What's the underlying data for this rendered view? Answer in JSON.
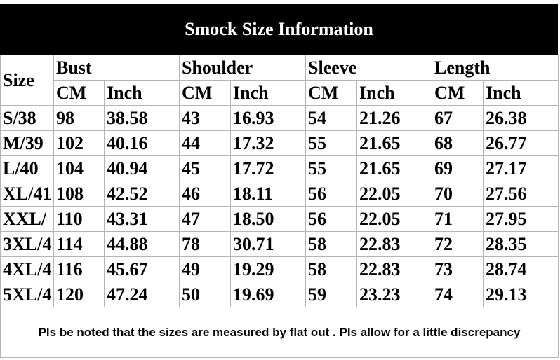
{
  "header": {
    "title": "Smock Size Information"
  },
  "table": {
    "size_label": "Size",
    "groups": [
      "Bust",
      "Shoulder",
      "Sleeve",
      "Length"
    ],
    "units": [
      "CM",
      "Inch",
      "CM",
      "Inch",
      "CM",
      "Inch",
      "CM",
      "Inch"
    ],
    "rows": [
      [
        "S/38",
        "98",
        "38.58",
        "43",
        "16.93",
        "54",
        "21.26",
        "67",
        "26.38"
      ],
      [
        "M/39",
        "102",
        "40.16",
        "44",
        "17.32",
        "55",
        "21.65",
        "68",
        "26.77"
      ],
      [
        "L/40",
        "104",
        "40.94",
        "45",
        "17.72",
        "55",
        "21.65",
        "69",
        "27.17"
      ],
      [
        "XL/41",
        "108",
        "42.52",
        "46",
        "18.11",
        "56",
        "22.05",
        "70",
        "27.56"
      ],
      [
        "XXL/",
        "110",
        "43.31",
        "47",
        "18.50",
        "56",
        "22.05",
        "71",
        "27.95"
      ],
      [
        "3XL/4",
        "114",
        "44.88",
        "78",
        "30.71",
        "58",
        "22.83",
        "72",
        "28.35"
      ],
      [
        "4XL/4",
        "116",
        "45.67",
        "49",
        "19.29",
        "58",
        "22.83",
        "73",
        "28.74"
      ],
      [
        "5XL/4",
        "120",
        "47.24",
        "50",
        "19.69",
        "59",
        "23.23",
        "74",
        "29.13"
      ]
    ],
    "note": "Pls be noted that the sizes are measured by flat out . Pls allow for a little discrepancy"
  }
}
